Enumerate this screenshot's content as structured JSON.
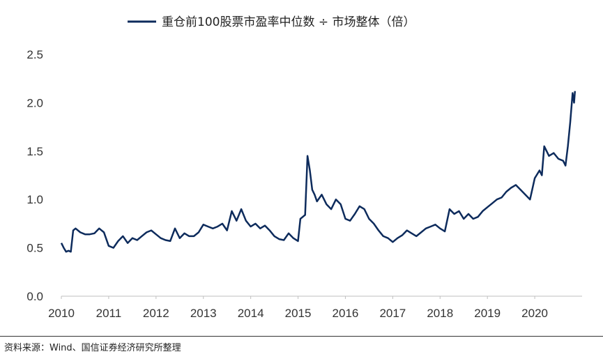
{
  "chart_data": {
    "type": "line",
    "title": "",
    "xlabel": "",
    "ylabel": "",
    "xlim": [
      2010,
      2021
    ],
    "ylim": [
      0,
      2.5
    ],
    "x_ticks": [
      "2010",
      "2011",
      "2012",
      "2013",
      "2014",
      "2015",
      "2016",
      "2017",
      "2018",
      "2019",
      "2020"
    ],
    "y_ticks": [
      "0.0",
      "0.5",
      "1.0",
      "1.5",
      "2.0",
      "2.5"
    ],
    "grid": false,
    "legend": "top-center",
    "series": [
      {
        "name": "重仓前100股票市盈率中位数 ÷ 市场整体（倍）",
        "color": "#0d2b5c",
        "points": [
          [
            2010.0,
            0.55
          ],
          [
            2010.05,
            0.5
          ],
          [
            2010.1,
            0.46
          ],
          [
            2010.15,
            0.47
          ],
          [
            2010.2,
            0.46
          ],
          [
            2010.25,
            0.68
          ],
          [
            2010.3,
            0.7
          ],
          [
            2010.4,
            0.66
          ],
          [
            2010.5,
            0.64
          ],
          [
            2010.6,
            0.64
          ],
          [
            2010.7,
            0.65
          ],
          [
            2010.8,
            0.7
          ],
          [
            2010.9,
            0.66
          ],
          [
            2011.0,
            0.52
          ],
          [
            2011.1,
            0.5
          ],
          [
            2011.2,
            0.57
          ],
          [
            2011.3,
            0.62
          ],
          [
            2011.4,
            0.55
          ],
          [
            2011.5,
            0.6
          ],
          [
            2011.6,
            0.58
          ],
          [
            2011.7,
            0.62
          ],
          [
            2011.8,
            0.66
          ],
          [
            2011.9,
            0.68
          ],
          [
            2012.0,
            0.64
          ],
          [
            2012.1,
            0.6
          ],
          [
            2012.2,
            0.58
          ],
          [
            2012.3,
            0.57
          ],
          [
            2012.4,
            0.7
          ],
          [
            2012.5,
            0.6
          ],
          [
            2012.6,
            0.65
          ],
          [
            2012.7,
            0.62
          ],
          [
            2012.8,
            0.62
          ],
          [
            2012.9,
            0.66
          ],
          [
            2013.0,
            0.74
          ],
          [
            2013.1,
            0.72
          ],
          [
            2013.2,
            0.7
          ],
          [
            2013.3,
            0.72
          ],
          [
            2013.4,
            0.75
          ],
          [
            2013.5,
            0.68
          ],
          [
            2013.6,
            0.88
          ],
          [
            2013.7,
            0.78
          ],
          [
            2013.8,
            0.9
          ],
          [
            2013.9,
            0.78
          ],
          [
            2014.0,
            0.72
          ],
          [
            2014.1,
            0.75
          ],
          [
            2014.2,
            0.7
          ],
          [
            2014.3,
            0.73
          ],
          [
            2014.4,
            0.68
          ],
          [
            2014.5,
            0.62
          ],
          [
            2014.6,
            0.59
          ],
          [
            2014.7,
            0.58
          ],
          [
            2014.8,
            0.65
          ],
          [
            2014.9,
            0.6
          ],
          [
            2015.0,
            0.57
          ],
          [
            2015.05,
            0.8
          ],
          [
            2015.1,
            0.82
          ],
          [
            2015.15,
            0.84
          ],
          [
            2015.2,
            1.45
          ],
          [
            2015.25,
            1.3
          ],
          [
            2015.3,
            1.1
          ],
          [
            2015.35,
            1.05
          ],
          [
            2015.4,
            0.98
          ],
          [
            2015.5,
            1.05
          ],
          [
            2015.6,
            0.95
          ],
          [
            2015.7,
            0.9
          ],
          [
            2015.8,
            1.0
          ],
          [
            2015.9,
            0.95
          ],
          [
            2016.0,
            0.8
          ],
          [
            2016.1,
            0.78
          ],
          [
            2016.2,
            0.85
          ],
          [
            2016.3,
            0.93
          ],
          [
            2016.4,
            0.9
          ],
          [
            2016.5,
            0.8
          ],
          [
            2016.6,
            0.75
          ],
          [
            2016.7,
            0.68
          ],
          [
            2016.8,
            0.62
          ],
          [
            2016.9,
            0.6
          ],
          [
            2017.0,
            0.56
          ],
          [
            2017.1,
            0.6
          ],
          [
            2017.2,
            0.63
          ],
          [
            2017.3,
            0.68
          ],
          [
            2017.4,
            0.65
          ],
          [
            2017.5,
            0.62
          ],
          [
            2017.6,
            0.66
          ],
          [
            2017.7,
            0.7
          ],
          [
            2017.8,
            0.72
          ],
          [
            2017.9,
            0.74
          ],
          [
            2018.0,
            0.7
          ],
          [
            2018.1,
            0.67
          ],
          [
            2018.2,
            0.9
          ],
          [
            2018.3,
            0.85
          ],
          [
            2018.4,
            0.88
          ],
          [
            2018.5,
            0.8
          ],
          [
            2018.6,
            0.85
          ],
          [
            2018.7,
            0.8
          ],
          [
            2018.8,
            0.82
          ],
          [
            2018.9,
            0.88
          ],
          [
            2019.0,
            0.92
          ],
          [
            2019.1,
            0.96
          ],
          [
            2019.2,
            1.0
          ],
          [
            2019.3,
            1.02
          ],
          [
            2019.4,
            1.08
          ],
          [
            2019.5,
            1.12
          ],
          [
            2019.6,
            1.15
          ],
          [
            2019.7,
            1.1
          ],
          [
            2019.8,
            1.05
          ],
          [
            2019.9,
            1.0
          ],
          [
            2020.0,
            1.22
          ],
          [
            2020.1,
            1.3
          ],
          [
            2020.15,
            1.25
          ],
          [
            2020.2,
            1.55
          ],
          [
            2020.25,
            1.5
          ],
          [
            2020.3,
            1.45
          ],
          [
            2020.4,
            1.48
          ],
          [
            2020.5,
            1.42
          ],
          [
            2020.6,
            1.4
          ],
          [
            2020.65,
            1.35
          ],
          [
            2020.7,
            1.55
          ],
          [
            2020.75,
            1.8
          ],
          [
            2020.8,
            2.1
          ],
          [
            2020.83,
            2.0
          ],
          [
            2020.85,
            2.12
          ]
        ]
      }
    ]
  },
  "source_note": "资料来源：Wind、国信证券经济研究所整理"
}
